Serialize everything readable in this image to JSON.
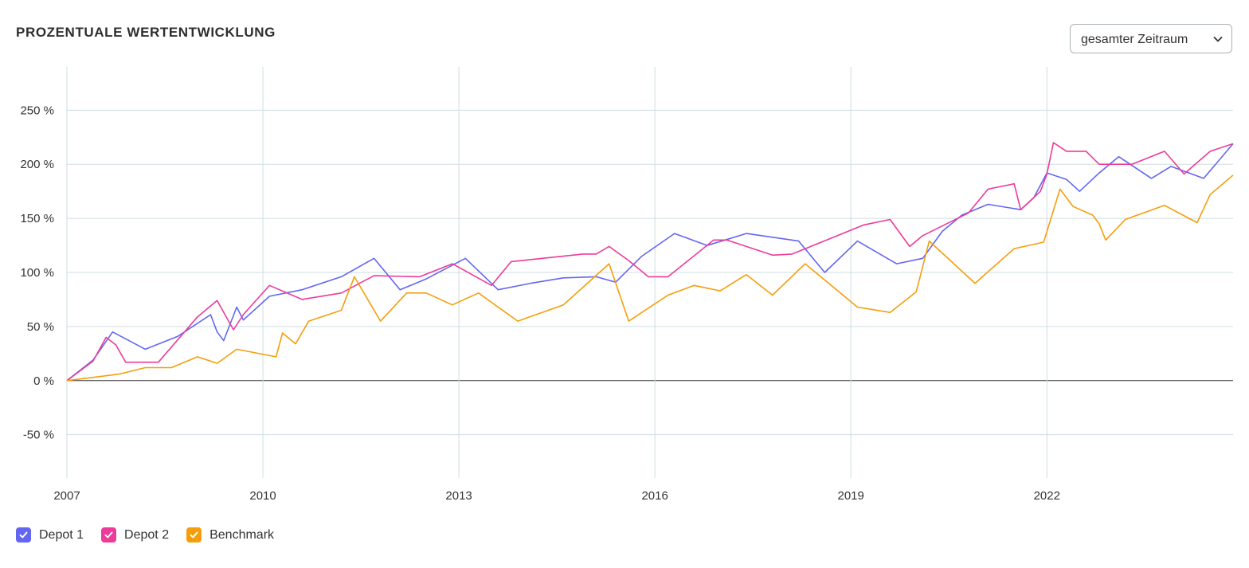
{
  "header": {
    "title": "PROZENTUALE WERTENTWICKLUNG",
    "period_select": {
      "value": "gesamter Zeitraum",
      "icon": "chevron-down-icon"
    }
  },
  "legend": [
    {
      "label": "Depot 1",
      "color": "#6366f1",
      "checked": true
    },
    {
      "label": "Depot 2",
      "color": "#ec3b9a",
      "checked": true
    },
    {
      "label": "Benchmark",
      "color": "#f59e0b",
      "checked": true
    }
  ],
  "chart_data": {
    "type": "line",
    "title": "PROZENTUALE WERTENTWICKLUNG",
    "xlabel": "",
    "ylabel": "",
    "xlim": [
      2007.0,
      2024.85
    ],
    "ylim": [
      -90,
      290
    ],
    "y_ticks": [
      -50,
      0,
      50,
      100,
      150,
      200,
      250
    ],
    "y_tick_labels": [
      "-50 %",
      "0 %",
      "50 %",
      "100 %",
      "150 %",
      "200 %",
      "250 %"
    ],
    "x_ticks": [
      2007,
      2010,
      2013,
      2016,
      2019,
      2022
    ],
    "x_tick_labels": [
      "2007",
      "2010",
      "2013",
      "2016",
      "2019",
      "2022"
    ],
    "grid": true,
    "legend_position": "bottom-left",
    "series": [
      {
        "name": "Depot 1",
        "color": "#6366f1",
        "points": [
          [
            2007.0,
            0
          ],
          [
            2007.4,
            19
          ],
          [
            2007.7,
            45
          ],
          [
            2008.2,
            29
          ],
          [
            2008.7,
            41
          ],
          [
            2009.2,
            61
          ],
          [
            2009.3,
            45
          ],
          [
            2009.4,
            37
          ],
          [
            2009.6,
            68
          ],
          [
            2009.7,
            56
          ],
          [
            2010.1,
            78
          ],
          [
            2010.6,
            84
          ],
          [
            2011.2,
            96
          ],
          [
            2011.7,
            113
          ],
          [
            2012.1,
            84
          ],
          [
            2012.5,
            94
          ],
          [
            2013.1,
            113
          ],
          [
            2013.6,
            84
          ],
          [
            2014.1,
            90
          ],
          [
            2014.6,
            95
          ],
          [
            2015.1,
            96
          ],
          [
            2015.4,
            91
          ],
          [
            2015.8,
            115
          ],
          [
            2016.3,
            136
          ],
          [
            2016.8,
            125
          ],
          [
            2017.4,
            136
          ],
          [
            2018.2,
            129
          ],
          [
            2018.6,
            100
          ],
          [
            2019.1,
            129
          ],
          [
            2019.7,
            108
          ],
          [
            2020.1,
            113
          ],
          [
            2020.4,
            138
          ],
          [
            2020.7,
            153
          ],
          [
            2021.1,
            163
          ],
          [
            2021.6,
            158
          ],
          [
            2021.8,
            169
          ],
          [
            2022.0,
            192
          ],
          [
            2022.3,
            186
          ],
          [
            2022.5,
            175
          ],
          [
            2022.8,
            192
          ],
          [
            2023.1,
            207
          ],
          [
            2023.6,
            187
          ],
          [
            2023.9,
            198
          ],
          [
            2024.4,
            187
          ],
          [
            2024.85,
            219
          ]
        ]
      },
      {
        "name": "Depot 2",
        "color": "#ec3b9a",
        "points": [
          [
            2007.0,
            0
          ],
          [
            2007.4,
            18
          ],
          [
            2007.6,
            40
          ],
          [
            2007.75,
            33
          ],
          [
            2007.9,
            17
          ],
          [
            2008.4,
            17
          ],
          [
            2009.0,
            59
          ],
          [
            2009.3,
            74
          ],
          [
            2009.55,
            47
          ],
          [
            2009.7,
            61
          ],
          [
            2010.1,
            88
          ],
          [
            2010.6,
            75
          ],
          [
            2011.2,
            81
          ],
          [
            2011.7,
            97
          ],
          [
            2012.4,
            96
          ],
          [
            2012.9,
            108
          ],
          [
            2013.5,
            88
          ],
          [
            2013.8,
            110
          ],
          [
            2014.9,
            117
          ],
          [
            2015.1,
            117
          ],
          [
            2015.3,
            124
          ],
          [
            2015.6,
            111
          ],
          [
            2015.9,
            96
          ],
          [
            2016.2,
            96
          ],
          [
            2016.9,
            130
          ],
          [
            2017.1,
            130
          ],
          [
            2017.8,
            116
          ],
          [
            2018.1,
            117
          ],
          [
            2019.2,
            144
          ],
          [
            2019.6,
            149
          ],
          [
            2019.9,
            124
          ],
          [
            2020.1,
            134
          ],
          [
            2020.8,
            155
          ],
          [
            2021.1,
            177
          ],
          [
            2021.5,
            182
          ],
          [
            2021.6,
            158
          ],
          [
            2021.9,
            175
          ],
          [
            2022.0,
            191
          ],
          [
            2022.1,
            220
          ],
          [
            2022.3,
            212
          ],
          [
            2022.6,
            212
          ],
          [
            2022.8,
            200
          ],
          [
            2023.3,
            200
          ],
          [
            2023.8,
            212
          ],
          [
            2024.1,
            191
          ],
          [
            2024.5,
            212
          ],
          [
            2024.85,
            219
          ]
        ]
      },
      {
        "name": "Benchmark",
        "color": "#f59e0b",
        "points": [
          [
            2007.0,
            0
          ],
          [
            2007.8,
            6
          ],
          [
            2008.2,
            12
          ],
          [
            2008.6,
            12
          ],
          [
            2009.0,
            22
          ],
          [
            2009.3,
            16
          ],
          [
            2009.6,
            29
          ],
          [
            2010.2,
            22
          ],
          [
            2010.3,
            44
          ],
          [
            2010.5,
            34
          ],
          [
            2010.7,
            55
          ],
          [
            2011.2,
            65
          ],
          [
            2011.4,
            96
          ],
          [
            2011.8,
            55
          ],
          [
            2012.2,
            81
          ],
          [
            2012.5,
            81
          ],
          [
            2012.9,
            70
          ],
          [
            2013.3,
            81
          ],
          [
            2013.9,
            55
          ],
          [
            2014.6,
            70
          ],
          [
            2015.3,
            108
          ],
          [
            2015.6,
            55
          ],
          [
            2016.2,
            79
          ],
          [
            2016.6,
            88
          ],
          [
            2017.0,
            83
          ],
          [
            2017.4,
            98
          ],
          [
            2017.8,
            79
          ],
          [
            2018.3,
            108
          ],
          [
            2019.1,
            68
          ],
          [
            2019.6,
            63
          ],
          [
            2020.0,
            82
          ],
          [
            2020.2,
            129
          ],
          [
            2020.9,
            90
          ],
          [
            2021.5,
            122
          ],
          [
            2021.95,
            128
          ],
          [
            2022.2,
            177
          ],
          [
            2022.4,
            161
          ],
          [
            2022.7,
            153
          ],
          [
            2022.8,
            145
          ],
          [
            2022.9,
            130
          ],
          [
            2023.2,
            149
          ],
          [
            2023.8,
            162
          ],
          [
            2024.3,
            146
          ],
          [
            2024.5,
            172
          ],
          [
            2024.85,
            190
          ]
        ]
      }
    ]
  }
}
